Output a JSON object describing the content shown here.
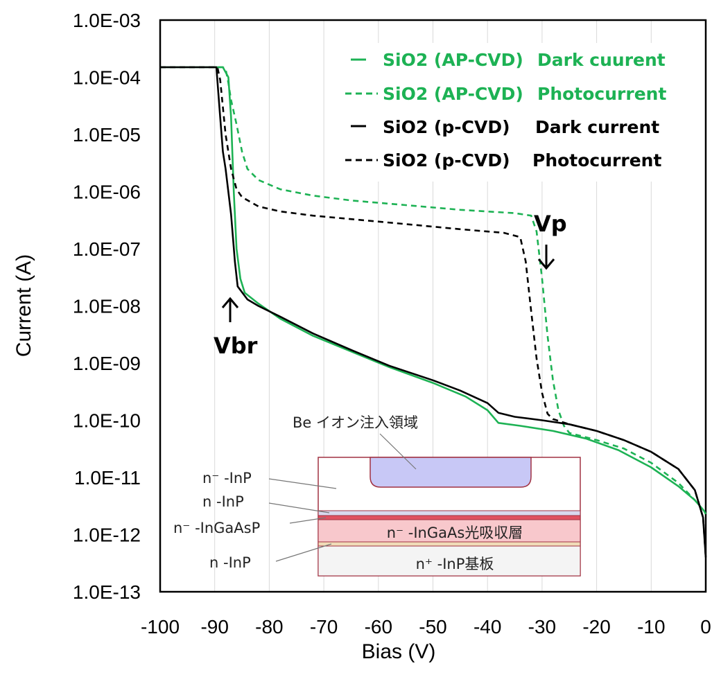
{
  "chart_data": {
    "type": "line",
    "xlabel": "Bias (V)",
    "ylabel": "Current (A)",
    "xlim": [
      -100,
      0
    ],
    "ylim_log10": [
      -13,
      -3
    ],
    "y_scale": "log",
    "x_ticks": [
      "-100",
      "-90",
      "-80",
      "-70",
      "-60",
      "-50",
      "-40",
      "-30",
      "-20",
      "-10",
      "0"
    ],
    "y_ticks": [
      "1.0E-13",
      "1.0E-12",
      "1.0E-11",
      "1.0E-10",
      "1.0E-09",
      "1.0E-08",
      "1.0E-07",
      "1.0E-06",
      "1.0E-05",
      "1.0E-04",
      "1.0E-03"
    ],
    "grid": "vertical",
    "legend_position": "top-right",
    "series": [
      {
        "name": "SiO2 (AP-CVD)   Dark cuurent",
        "label_left": "SiO2 (AP-CVD)",
        "label_right": "Dark cuurent",
        "color": "#1db254",
        "dash": "solid",
        "points": [
          [
            -100,
            0.00015
          ],
          [
            -88.5,
            0.00015
          ],
          [
            -87.5,
            0.0001
          ],
          [
            -87,
            2e-05
          ],
          [
            -86.5,
            1e-06
          ],
          [
            -86,
            1e-07
          ],
          [
            -85.3,
            3e-08
          ],
          [
            -84.5,
            1.7e-08
          ],
          [
            -82,
            1.1e-08
          ],
          [
            -78,
            6e-09
          ],
          [
            -72,
            3e-09
          ],
          [
            -65,
            1.6e-09
          ],
          [
            -58,
            8.5e-10
          ],
          [
            -50,
            4.5e-10
          ],
          [
            -44,
            2.6e-10
          ],
          [
            -40,
            1.5e-10
          ],
          [
            -38,
            9e-11
          ],
          [
            -34,
            8e-11
          ],
          [
            -28,
            6.5e-11
          ],
          [
            -22,
            4.8e-11
          ],
          [
            -16,
            3e-11
          ],
          [
            -10,
            1.5e-11
          ],
          [
            -5,
            7e-12
          ],
          [
            -2,
            4e-12
          ],
          [
            -0.3,
            2.6e-12
          ],
          [
            0,
            2.3e-12
          ]
        ]
      },
      {
        "name": "SiO2 (AP-CVD)   Photocurrent",
        "label_left": "SiO2 (AP-CVD)",
        "label_right": "Photocurrent",
        "color": "#1db254",
        "dash": "dashed",
        "points": [
          [
            -100,
            0.00015
          ],
          [
            -88.5,
            0.00015
          ],
          [
            -88,
            0.00014
          ],
          [
            -87.5,
            8e-05
          ],
          [
            -87,
            4e-05
          ],
          [
            -86,
            1.5e-05
          ],
          [
            -85,
            5e-06
          ],
          [
            -84,
            2.5e-06
          ],
          [
            -82,
            1.6e-06
          ],
          [
            -78,
            1.1e-06
          ],
          [
            -72,
            8.5e-07
          ],
          [
            -65,
            7e-07
          ],
          [
            -55,
            5.8e-07
          ],
          [
            -45,
            4.8e-07
          ],
          [
            -35,
            4.2e-07
          ],
          [
            -32,
            3.8e-07
          ],
          [
            -31,
            2e-07
          ],
          [
            -30,
            3e-08
          ],
          [
            -29,
            3e-09
          ],
          [
            -28,
            5e-10
          ],
          [
            -27,
            1.5e-10
          ],
          [
            -26,
            8e-11
          ],
          [
            -25,
            6e-11
          ],
          [
            -20,
            4.5e-11
          ],
          [
            -15,
            3.2e-11
          ],
          [
            -10,
            1.8e-11
          ],
          [
            -5,
            8e-12
          ],
          [
            -2,
            4e-12
          ],
          [
            -0.3,
            2.6e-12
          ],
          [
            0,
            2.3e-12
          ]
        ]
      },
      {
        "name": "SiO2 (p-CVD)     Dark current",
        "label_left": "SiO2 (p-CVD)",
        "label_right": "Dark current",
        "color": "#000000",
        "dash": "solid",
        "points": [
          [
            -100,
            0.00015
          ],
          [
            -89.7,
            0.00015
          ],
          [
            -89,
            2e-05
          ],
          [
            -88.5,
            5e-06
          ],
          [
            -88,
            2.5e-06
          ],
          [
            -87,
            4e-07
          ],
          [
            -86.3,
            6e-08
          ],
          [
            -85.8,
            2.2e-08
          ],
          [
            -84,
            1.3e-08
          ],
          [
            -82,
            1e-08
          ],
          [
            -78,
            6.5e-09
          ],
          [
            -72,
            3.3e-09
          ],
          [
            -65,
            1.7e-09
          ],
          [
            -58,
            9e-10
          ],
          [
            -50,
            5e-10
          ],
          [
            -45,
            3.3e-10
          ],
          [
            -40,
            2e-10
          ],
          [
            -38,
            1.35e-10
          ],
          [
            -35,
            1.15e-10
          ],
          [
            -30,
            1e-10
          ],
          [
            -25,
            8.5e-11
          ],
          [
            -20,
            6.5e-11
          ],
          [
            -15,
            4.5e-11
          ],
          [
            -10,
            2.8e-11
          ],
          [
            -5,
            1.4e-11
          ],
          [
            -2,
            6e-12
          ],
          [
            -0.5,
            2e-12
          ],
          [
            0,
            4e-13
          ]
        ]
      },
      {
        "name": "SiO2 (p-CVD)     Photocurrent",
        "label_left": "SiO2 (p-CVD)",
        "label_right": "Photocurrent",
        "color": "#000000",
        "dash": "dashed",
        "points": [
          [
            -100,
            0.00015
          ],
          [
            -89.5,
            0.00015
          ],
          [
            -89,
            9e-05
          ],
          [
            -88.5,
            3e-05
          ],
          [
            -88,
            1e-05
          ],
          [
            -87,
            2.5e-06
          ],
          [
            -86,
            1.1e-06
          ],
          [
            -85,
            8e-07
          ],
          [
            -82,
            5.5e-07
          ],
          [
            -78,
            4.5e-07
          ],
          [
            -72,
            3.8e-07
          ],
          [
            -65,
            3.3e-07
          ],
          [
            -55,
            2.7e-07
          ],
          [
            -45,
            2.2e-07
          ],
          [
            -37,
            1.9e-07
          ],
          [
            -34,
            1.6e-07
          ],
          [
            -33,
            6e-08
          ],
          [
            -32,
            8e-09
          ],
          [
            -31,
            1.2e-09
          ],
          [
            -30,
            3e-10
          ],
          [
            -29,
            1.3e-10
          ],
          [
            -28,
            1.05e-10
          ],
          [
            -25,
            8.5e-11
          ],
          [
            -20,
            6.5e-11
          ],
          [
            -15,
            4.5e-11
          ],
          [
            -10,
            2.8e-11
          ],
          [
            -5,
            1.4e-11
          ],
          [
            -2,
            6e-12
          ],
          [
            -0.5,
            2e-12
          ],
          [
            0,
            4e-13
          ]
        ]
      }
    ],
    "annotations": {
      "vbr": "Vbr",
      "vp": "Vp"
    }
  },
  "inset": {
    "be_region": "Be イオン注入領域",
    "layer_n_minus_inp": "n⁻ -InP",
    "layer_n_inp_top": "n  -InP",
    "layer_n_minus_ingaasp": "n⁻ -InGaAsP",
    "layer_n_inp_bottom": "n  -InP",
    "absorption_layer": "n⁻ -InGaAs光吸収層",
    "substrate": "n⁺ -InP基板"
  }
}
